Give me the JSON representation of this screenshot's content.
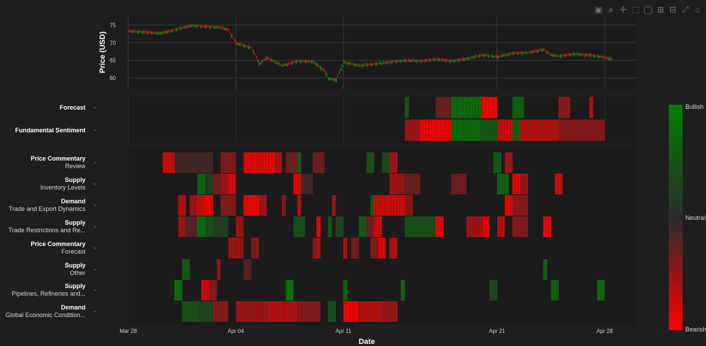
{
  "toolbar": {
    "icons": [
      "camera-icon",
      "zoom-icon",
      "pan-icon",
      "box-select-icon",
      "lasso-icon",
      "zoom-in-icon",
      "zoom-out-icon",
      "autoscale-icon",
      "reset-axes-icon"
    ]
  },
  "chart_data": {
    "type": "candlestick+heatmap",
    "price": {
      "ylabel": "Price (USD)",
      "yticks": [
        60,
        65,
        70,
        75
      ],
      "ylim": [
        57.5,
        77
      ],
      "points": [
        [
          "2025-03-28",
          73.3
        ],
        [
          "2025-03-29",
          73.0
        ],
        [
          "2025-03-30",
          72.6
        ],
        [
          "2025-03-31",
          73.6
        ],
        [
          "2025-04-01",
          74.8
        ],
        [
          "2025-04-02",
          74.6
        ],
        [
          "2025-04-03",
          74.3
        ],
        [
          "2025-04-03T12:00",
          73.5
        ],
        [
          "2025-04-04",
          69.8
        ],
        [
          "2025-04-05",
          68.5
        ],
        [
          "2025-04-05T12:00",
          64.0
        ],
        [
          "2025-04-06",
          65.8
        ],
        [
          "2025-04-07",
          63.5
        ],
        [
          "2025-04-08",
          64.8
        ],
        [
          "2025-04-09",
          64.6
        ],
        [
          "2025-04-09T18:00",
          62.0
        ],
        [
          "2025-04-10",
          59.8
        ],
        [
          "2025-04-10T12:00",
          59.5
        ],
        [
          "2025-04-11",
          64.5
        ],
        [
          "2025-04-11T12:00",
          64.0
        ],
        [
          "2025-04-12",
          63.5
        ],
        [
          "2025-04-13",
          64.0
        ],
        [
          "2025-04-14",
          64.5
        ],
        [
          "2025-04-15",
          65.0
        ],
        [
          "2025-04-16",
          64.8
        ],
        [
          "2025-04-17",
          65.3
        ],
        [
          "2025-04-18",
          64.8
        ],
        [
          "2025-04-19",
          65.5
        ],
        [
          "2025-04-20",
          66.5
        ],
        [
          "2025-04-21",
          66.0
        ],
        [
          "2025-04-22",
          67.0
        ],
        [
          "2025-04-23",
          67.2
        ],
        [
          "2025-04-24",
          68.0
        ],
        [
          "2025-04-24T12:00",
          66.5
        ],
        [
          "2025-04-25",
          66.2
        ],
        [
          "2025-04-26",
          66.8
        ],
        [
          "2025-04-27",
          66.5
        ],
        [
          "2025-04-28",
          65.8
        ],
        [
          "2025-04-28T12:00",
          65.2
        ]
      ]
    },
    "xlabel": "Date",
    "xticks": [
      "Mar 28",
      "Apr 04",
      "Apr 11",
      "Apr 21",
      "Apr 28"
    ],
    "xtick_dates": [
      "2025-03-28",
      "2025-04-04",
      "2025-04-11",
      "2025-04-21",
      "2025-04-28"
    ],
    "xlim": [
      "2025-03-27T12:00",
      "2025-04-30"
    ],
    "colorscale": {
      "top": "Bullish",
      "mid": "Neutral",
      "bottom": "Bearish",
      "colors": [
        "#ff0000",
        "#2b2b2b",
        "#008000"
      ]
    },
    "top_rows": [
      {
        "bold": "Forecast",
        "sub": "",
        "segments": [
          [
            "2025-04-15",
            "2025-04-15T06:00",
            0.5
          ],
          [
            "2025-04-17",
            "2025-04-18",
            -0.3
          ],
          [
            "2025-04-18",
            "2025-04-20",
            0.7
          ],
          [
            "2025-04-20",
            "2025-04-21",
            -1
          ],
          [
            "2025-04-22",
            "2025-04-22T18:00",
            0.6
          ],
          [
            "2025-04-25",
            "2025-04-25T18:00",
            -0.4
          ],
          [
            "2025-04-27",
            "2025-04-27T06:00",
            -0.6
          ]
        ]
      },
      {
        "bold": "Fundamental Sentiment",
        "sub": "",
        "segments": [
          [
            "2025-04-15",
            "2025-04-16",
            -0.5
          ],
          [
            "2025-04-16",
            "2025-04-18",
            -0.9
          ],
          [
            "2025-04-18",
            "2025-04-20",
            0.7
          ],
          [
            "2025-04-20",
            "2025-04-21",
            0.5
          ],
          [
            "2025-04-21",
            "2025-04-22",
            -0.7
          ],
          [
            "2025-04-22",
            "2025-04-22T12:00",
            0.6
          ],
          [
            "2025-04-22T12:00",
            "2025-04-25",
            -0.6
          ],
          [
            "2025-04-25",
            "2025-04-28",
            -0.4
          ]
        ]
      }
    ],
    "topic_rows": [
      {
        "bold": "Price Commentary",
        "sub": "Review",
        "segments": [
          [
            "2025-03-30T06:00",
            "2025-03-31",
            -0.7
          ],
          [
            "2025-03-31",
            "2025-04-02T12:00",
            -0.1
          ],
          [
            "2025-04-03",
            "2025-04-04",
            -0.4
          ],
          [
            "2025-04-04T12:00",
            "2025-04-06T12:00",
            -0.8
          ],
          [
            "2025-04-06T12:00",
            "2025-04-07",
            -0.6
          ],
          [
            "2025-04-07T06:00",
            "2025-04-08",
            -0.3
          ],
          [
            "2025-04-08",
            "2025-04-08T06:00",
            0.5
          ],
          [
            "2025-04-09",
            "2025-04-09T18:00",
            -0.3
          ],
          [
            "2025-04-12T12:00",
            "2025-04-13",
            0.4
          ],
          [
            "2025-04-13T12:00",
            "2025-04-14",
            0.3
          ],
          [
            "2025-04-14",
            "2025-04-14T12:00",
            -0.5
          ],
          [
            "2025-04-20T18:00",
            "2025-04-21T06:00",
            0.5
          ],
          [
            "2025-04-21T12:00",
            "2025-04-22",
            -0.5
          ]
        ]
      },
      {
        "bold": "Supply",
        "sub": "Inventory Levels",
        "segments": [
          [
            "2025-04-01T12:00",
            "2025-04-02",
            0.6
          ],
          [
            "2025-04-02",
            "2025-04-02T12:00",
            0.2
          ],
          [
            "2025-04-02T12:00",
            "2025-04-03",
            -0.3
          ],
          [
            "2025-04-03",
            "2025-04-03T12:00",
            -0.5
          ],
          [
            "2025-04-03T12:00",
            "2025-04-04",
            -0.8
          ],
          [
            "2025-04-07T18:00",
            "2025-04-08T06:00",
            -0.8
          ],
          [
            "2025-04-08T06:00",
            "2025-04-09",
            -0.1
          ],
          [
            "2025-04-14",
            "2025-04-15",
            -0.5
          ],
          [
            "2025-04-15",
            "2025-04-16",
            -0.3
          ],
          [
            "2025-04-18",
            "2025-04-19",
            -0.3
          ],
          [
            "2025-04-21",
            "2025-04-21T18:00",
            0.6
          ],
          [
            "2025-04-22",
            "2025-04-22T12:00",
            -0.8
          ],
          [
            "2025-04-22T12:00",
            "2025-04-23",
            -0.5
          ],
          [
            "2025-04-24T18:00",
            "2025-04-25T06:00",
            -0.7
          ]
        ]
      },
      {
        "bold": "Demand",
        "sub": "Trade and Export Dynamics",
        "segments": [
          [
            "2025-03-31T06:00",
            "2025-03-31T18:00",
            -0.6
          ],
          [
            "2025-04-01",
            "2025-04-01T12:00",
            -0.5
          ],
          [
            "2025-04-01T12:00",
            "2025-04-02",
            -0.7
          ],
          [
            "2025-04-02",
            "2025-04-02T12:00",
            -0.9
          ],
          [
            "2025-04-03",
            "2025-04-04",
            -0.4
          ],
          [
            "2025-04-04T12:00",
            "2025-04-05T12:00",
            -0.9
          ],
          [
            "2025-04-05T12:00",
            "2025-04-06",
            -0.5
          ],
          [
            "2025-04-07",
            "2025-04-07T06:00",
            -0.4
          ],
          [
            "2025-04-08",
            "2025-04-08T06:00",
            -0.6
          ],
          [
            "2025-04-10T06:00",
            "2025-04-10T12:00",
            -0.5
          ],
          [
            "2025-04-12T18:00",
            "2025-04-13",
            0.5
          ],
          [
            "2025-04-13",
            "2025-04-15",
            -0.7
          ],
          [
            "2025-04-15",
            "2025-04-15T12:00",
            -0.4
          ],
          [
            "2025-04-21T12:00",
            "2025-04-22",
            -0.8
          ],
          [
            "2025-04-22",
            "2025-04-23",
            -0.4
          ]
        ]
      },
      {
        "bold": "Supply",
        "sub": "Trade Restrictions and Re...",
        "segments": [
          [
            "2025-03-31T06:00",
            "2025-03-31T18:00",
            -0.5
          ],
          [
            "2025-03-31T18:00",
            "2025-04-01T12:00",
            -0.2
          ],
          [
            "2025-04-01T12:00",
            "2025-04-02",
            0.7
          ],
          [
            "2025-04-02",
            "2025-04-02T12:00",
            0.4
          ],
          [
            "2025-04-02T12:00",
            "2025-04-03T12:00",
            0.2
          ],
          [
            "2025-04-04",
            "2025-04-04T12:00",
            -0.5
          ],
          [
            "2025-04-07T18:00",
            "2025-04-08T12:00",
            0.4
          ],
          [
            "2025-04-09T06:00",
            "2025-04-09T12:00",
            -0.9
          ],
          [
            "2025-04-10",
            "2025-04-10T06:00",
            0.5
          ],
          [
            "2025-04-10T12:00",
            "2025-04-11",
            0.3
          ],
          [
            "2025-04-12",
            "2025-04-12T12:00",
            0.5
          ],
          [
            "2025-04-12T12:00",
            "2025-04-13",
            -0.3
          ],
          [
            "2025-04-13",
            "2025-04-13T12:00",
            -0.7
          ],
          [
            "2025-04-15",
            "2025-04-17",
            0.4
          ],
          [
            "2025-04-17",
            "2025-04-17T12:00",
            -0.8
          ],
          [
            "2025-04-19",
            "2025-04-20",
            -0.5
          ],
          [
            "2025-04-20",
            "2025-04-20T12:00",
            -0.8
          ],
          [
            "2025-04-21",
            "2025-04-21T12:00",
            -0.6
          ],
          [
            "2025-04-22",
            "2025-04-23",
            -0.4
          ],
          [
            "2025-04-24",
            "2025-04-24T12:00",
            -0.8
          ]
        ]
      },
      {
        "bold": "Price Commentary",
        "sub": "Forecast",
        "segments": [
          [
            "2025-04-03T12:00",
            "2025-04-04T12:00",
            -0.5
          ],
          [
            "2025-04-05",
            "2025-04-05T12:00",
            -0.4
          ],
          [
            "2025-04-09",
            "2025-04-09T12:00",
            -0.5
          ],
          [
            "2025-04-11",
            "2025-04-11T06:00",
            -0.6
          ],
          [
            "2025-04-11T12:00",
            "2025-04-12",
            -0.3
          ],
          [
            "2025-04-12T18:00",
            "2025-04-13T06:00",
            -0.4
          ],
          [
            "2025-04-13T06:00",
            "2025-04-13T18:00",
            -0.8
          ],
          [
            "2025-04-14",
            "2025-04-14T12:00",
            -0.6
          ]
        ]
      },
      {
        "bold": "Supply",
        "sub": "Other",
        "segments": [
          [
            "2025-03-31T12:00",
            "2025-04-01",
            0.5
          ],
          [
            "2025-04-02T18:00",
            "2025-04-03",
            -0.4
          ],
          [
            "2025-04-04T12:00",
            "2025-04-05",
            -0.2
          ],
          [
            "2025-04-24",
            "2025-04-24T06:00",
            0.6
          ]
        ]
      },
      {
        "bold": "Supply",
        "sub": "Pipelines, Refineries and...",
        "segments": [
          [
            "2025-03-31",
            "2025-03-31T12:00",
            0.7
          ],
          [
            "2025-04-01T18:00",
            "2025-04-02T06:00",
            -0.7
          ],
          [
            "2025-04-02T06:00",
            "2025-04-02T18:00",
            -0.4
          ],
          [
            "2025-04-07T06:00",
            "2025-04-07T18:00",
            0.8
          ],
          [
            "2025-04-11",
            "2025-04-11T06:00",
            0.6
          ],
          [
            "2025-04-14T18:00",
            "2025-04-15",
            0.7
          ],
          [
            "2025-04-20T12:00",
            "2025-04-21",
            0.3
          ],
          [
            "2025-04-24T12:00",
            "2025-04-25",
            0.6
          ],
          [
            "2025-04-27T12:00",
            "2025-04-28",
            0.7
          ]
        ]
      },
      {
        "bold": "Demand",
        "sub": "Global Economic Condition...",
        "segments": [
          [
            "2025-03-31T12:00",
            "2025-04-01T12:00",
            0.4
          ],
          [
            "2025-04-01T12:00",
            "2025-04-02T12:00",
            0.3
          ],
          [
            "2025-04-02T12:00",
            "2025-04-03T12:00",
            -0.4
          ],
          [
            "2025-04-04",
            "2025-04-06",
            -0.5
          ],
          [
            "2025-04-06",
            "2025-04-08",
            -0.6
          ],
          [
            "2025-04-08",
            "2025-04-09T12:00",
            -0.4
          ],
          [
            "2025-04-10",
            "2025-04-10T12:00",
            0.4
          ],
          [
            "2025-04-11",
            "2025-04-12",
            -0.9
          ],
          [
            "2025-04-12",
            "2025-04-13T12:00",
            -0.6
          ],
          [
            "2025-04-13T12:00",
            "2025-04-14T12:00",
            -0.5
          ]
        ]
      }
    ]
  }
}
